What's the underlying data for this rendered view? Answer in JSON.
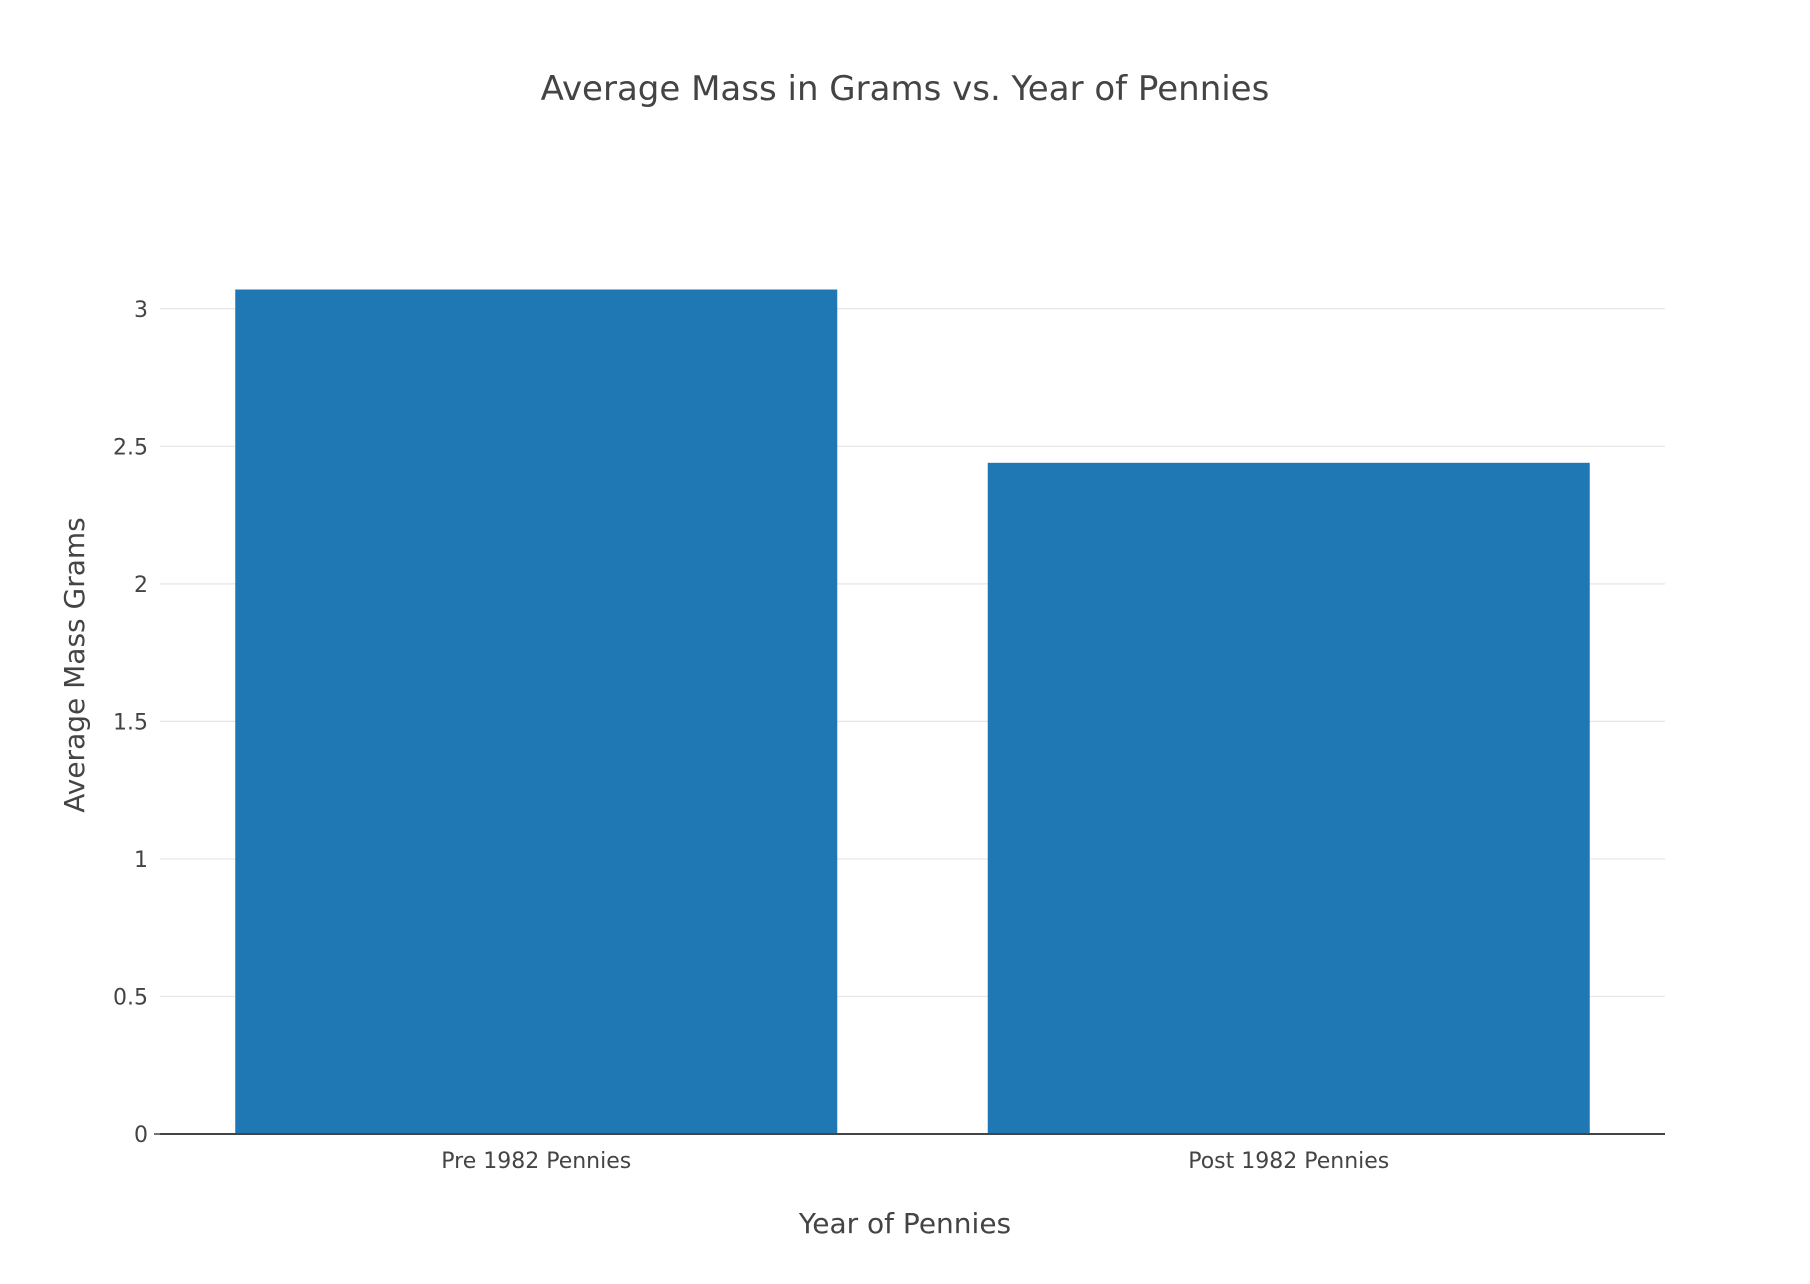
{
  "chart_data": {
    "type": "bar",
    "title": "Average Mass in Grams vs. Year of Pennies",
    "xlabel": "Year of Pennies",
    "ylabel": "Average Mass Grams",
    "categories": [
      "Pre 1982 Pennies",
      "Post 1982 Pennies"
    ],
    "values": [
      3.07,
      2.44
    ],
    "ylim": [
      0,
      3.25
    ],
    "yticks": [
      0,
      0.5,
      1,
      1.5,
      2,
      2.5,
      3
    ],
    "ytick_labels": [
      "0",
      "0.5",
      "1",
      "1.5",
      "2",
      "2.5",
      "3"
    ],
    "grid": true,
    "bar_color": "#1f77b4"
  }
}
